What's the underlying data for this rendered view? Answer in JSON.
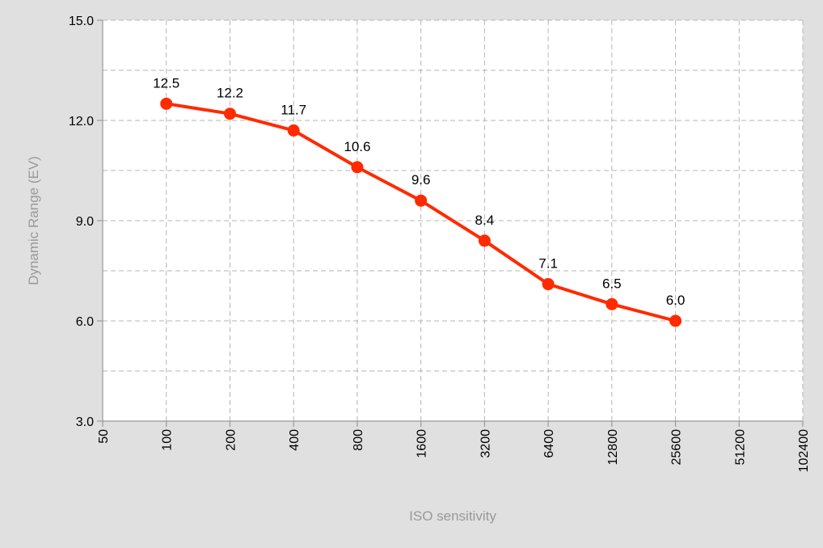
{
  "chart_data": {
    "type": "line",
    "title": "",
    "xlabel": "ISO sensitivity",
    "ylabel": "Dynamic Range (EV)",
    "x_scale": "log2",
    "x_ticks": [
      "50",
      "100",
      "200",
      "400",
      "800",
      "1600",
      "3200",
      "6400",
      "12800",
      "25600",
      "51200",
      "102400"
    ],
    "y_ticks": [
      "3.0",
      "6.0",
      "9.0",
      "12.0",
      "15.0"
    ],
    "ylim": [
      3,
      15
    ],
    "grid": true,
    "series": [
      {
        "x": [
          100,
          200,
          400,
          800,
          1600,
          3200,
          6400,
          12800,
          25600
        ],
        "values": [
          12.5,
          12.2,
          11.7,
          10.6,
          9.6,
          8.4,
          7.1,
          6.5,
          6.0
        ],
        "labels": [
          "12.5",
          "12.2",
          "11.7",
          "10.6",
          "9.6",
          "8.4",
          "7.1",
          "6.5",
          "6.0"
        ],
        "color": "#ff2a00"
      }
    ]
  },
  "colors": {
    "frame_background": "#e0e0e0",
    "plot_background": "#ffffff",
    "grid": "#b5b5b5",
    "axis": "#999999",
    "series": "#ff2a00"
  }
}
